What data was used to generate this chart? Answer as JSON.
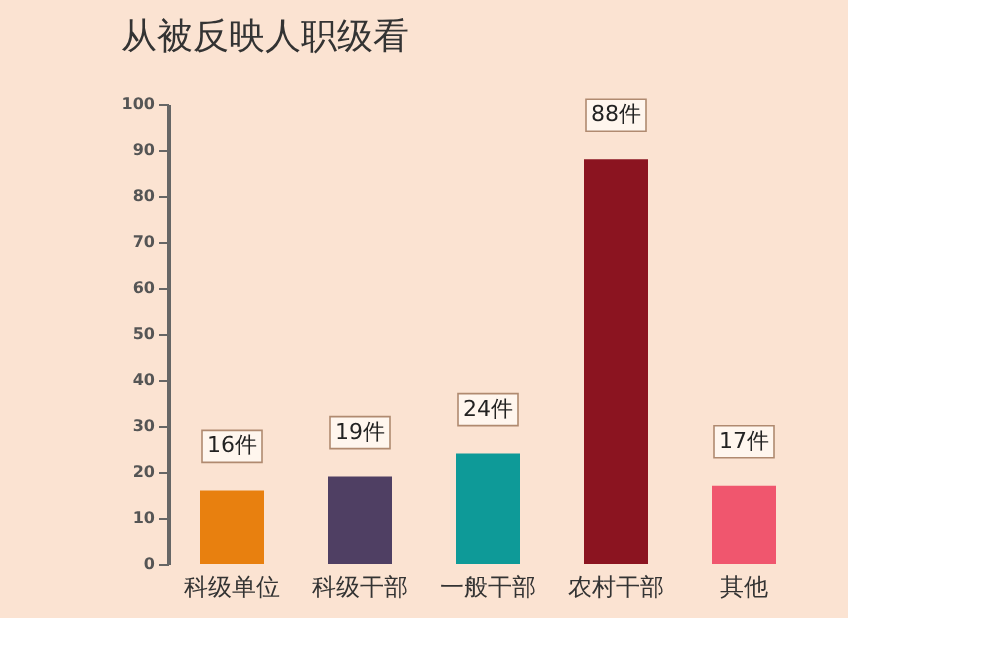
{
  "chart_data": {
    "type": "bar",
    "title": "从被反映人职级看",
    "categories": [
      "科级单位",
      "科级干部",
      "一般干部",
      "农村干部",
      "其他"
    ],
    "values": [
      16,
      19,
      24,
      88,
      17
    ],
    "colors": [
      "#e8800f",
      "#4f3f63",
      "#0e9a98",
      "#8b1420",
      "#f0566e"
    ],
    "value_labels": [
      "16件",
      "19件",
      "24件",
      "88件",
      "17件"
    ],
    "ylim": [
      0,
      100
    ],
    "yticks": [
      0,
      10,
      20,
      30,
      40,
      50,
      60,
      70,
      80,
      90,
      100
    ],
    "grid": false
  }
}
